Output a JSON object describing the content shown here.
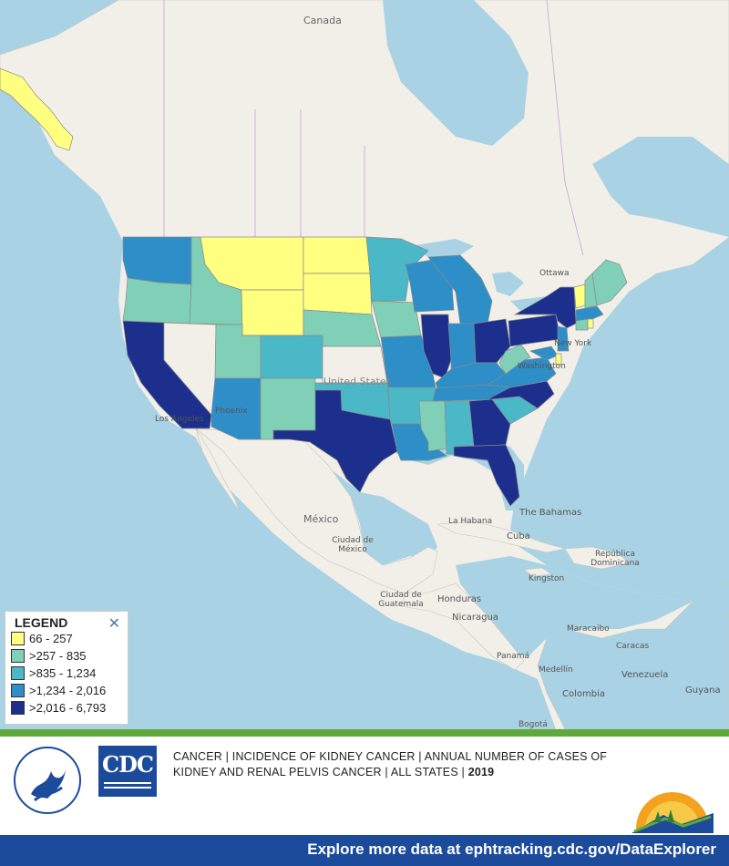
{
  "map": {
    "labels": {
      "canada": "Canada",
      "ottawa": "Ottawa",
      "new_york": "New York",
      "washington": "Washington",
      "united_states": "United States",
      "los_angeles": "Los Angeles",
      "phoenix": "Phoenix",
      "mexico": "México",
      "mexico_city": "Ciudad de México",
      "the_bahamas": "The Bahamas",
      "la_habana": "La Habana",
      "cuba": "Cuba",
      "republica_dominicana": "República Dominicana",
      "kingston": "Kingston",
      "guatemala_city": "Ciudad de Guatemala",
      "honduras": "Honduras",
      "nicaragua": "Nicaragua",
      "panama": "Panamá",
      "maracaibo": "Maracaibo",
      "caracas": "Caracas",
      "medellin": "Medellín",
      "venezuela": "Venezuela",
      "colombia": "Colombia",
      "guyana": "Guyana",
      "bogota": "Bogotá"
    },
    "class_colors": [
      "#ffff80",
      "#80d0b8",
      "#4bb8c8",
      "#2e8ec8",
      "#1c2f8c"
    ],
    "base_colors": {
      "water": "#a9d3e4",
      "land": "#f2efe9",
      "border": "#b8a8c8"
    }
  },
  "legend": {
    "title": "LEGEND",
    "close_icon": "close-icon",
    "items": [
      {
        "label": "66 - 257",
        "color": "#ffff80"
      },
      {
        "label": ">257 - 835",
        "color": "#80d0b8"
      },
      {
        "label": ">835 - 1,234",
        "color": "#4bb8c8"
      },
      {
        "label": ">1,234 - 2,016",
        "color": "#2e8ec8"
      },
      {
        "label": ">2,016 - 6,793",
        "color": "#1c2f8c"
      }
    ]
  },
  "footer": {
    "caption_line1": "CANCER | INCIDENCE OF KIDNEY CANCER | ANNUAL NUMBER OF CASES OF",
    "caption_line2": "KIDNEY AND RENAL PELVIS CANCER | ALL STATES |",
    "year": "2019",
    "cdc_logo_text": "CDC",
    "hhs_seal_icon": "hhs-seal-icon",
    "tracking_logo_icon": "tracking-network-logo-icon",
    "bottom_text": "Explore more data at ephtracking.cdc.gov/DataExplorer"
  }
}
